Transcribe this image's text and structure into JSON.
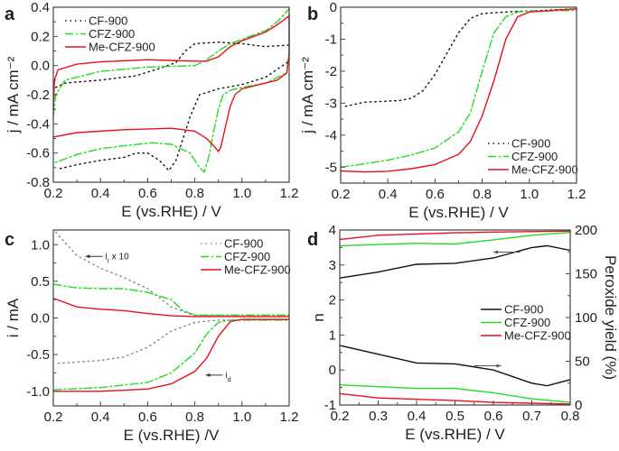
{
  "chart_data": [
    {
      "panel": "a",
      "type": "line",
      "xlabel": "E (vs.RHE) / V",
      "ylabel": "j / mA cm⁻²",
      "xlim": [
        0.2,
        1.2
      ],
      "ylim": [
        -0.8,
        0.4
      ],
      "xticks": [
        0.2,
        0.4,
        0.6,
        0.8,
        1.0,
        1.2
      ],
      "yticks": [
        0.4,
        0.2,
        0.0,
        -0.2,
        -0.4,
        -0.6,
        -0.8
      ],
      "xtick_labels": [
        "0.2",
        "0.4",
        "0.6",
        "0.8",
        "1.0",
        "1.2"
      ],
      "ytick_labels": [
        "0.4",
        "0.2",
        "0.0",
        "-0.2",
        "-0.4",
        "-0.6",
        "-0.8"
      ],
      "legend": "top-left",
      "series": [
        {
          "name": "CF-900",
          "color": "#111111",
          "style": "dotted",
          "x": [
            0.21,
            0.25,
            0.4,
            0.55,
            0.65,
            0.72,
            0.76,
            0.8,
            0.9,
            1.0,
            1.1,
            1.2,
            1.2,
            1.1,
            1.0,
            0.9,
            0.82,
            0.78,
            0.75,
            0.72,
            0.69,
            0.65,
            0.6,
            0.55,
            0.5,
            0.4,
            0.3,
            0.22
          ],
          "y": [
            -0.15,
            -0.12,
            -0.1,
            -0.07,
            -0.02,
            0.02,
            0.1,
            0.15,
            0.16,
            0.15,
            0.13,
            0.14,
            0.03,
            -0.08,
            -0.13,
            -0.16,
            -0.2,
            -0.35,
            -0.5,
            -0.65,
            -0.72,
            -0.65,
            -0.6,
            -0.6,
            -0.63,
            -0.65,
            -0.68,
            -0.71
          ]
        },
        {
          "name": "CFZ-900",
          "color": "#22dd22",
          "style": "dashdot",
          "x": [
            0.2,
            0.21,
            0.25,
            0.4,
            0.6,
            0.8,
            0.85,
            0.9,
            0.95,
            1.0,
            1.1,
            1.15,
            1.2,
            1.2,
            1.19,
            1.1,
            1.0,
            0.95,
            0.92,
            0.9,
            0.88,
            0.86,
            0.84,
            0.82,
            0.78,
            0.7,
            0.62,
            0.5,
            0.4,
            0.3,
            0.2
          ],
          "y": [
            -0.35,
            -0.2,
            -0.1,
            -0.04,
            -0.01,
            0.0,
            0.04,
            0.1,
            0.15,
            0.18,
            0.24,
            0.3,
            0.39,
            0.1,
            -0.05,
            -0.12,
            -0.15,
            -0.17,
            -0.2,
            -0.3,
            -0.45,
            -0.62,
            -0.73,
            -0.7,
            -0.6,
            -0.54,
            -0.53,
            -0.55,
            -0.57,
            -0.61,
            -0.67
          ]
        },
        {
          "name": "Me-CFZ-900",
          "color": "#e8101b",
          "style": "solid",
          "x": [
            0.2,
            0.205,
            0.22,
            0.3,
            0.4,
            0.6,
            0.7,
            0.8,
            0.85,
            0.9,
            0.95,
            1.0,
            1.1,
            1.15,
            1.2,
            1.2,
            1.19,
            1.15,
            1.1,
            1.0,
            0.97,
            0.95,
            0.93,
            0.91,
            0.9,
            0.88,
            0.85,
            0.8,
            0.7,
            0.5,
            0.3,
            0.2
          ],
          "y": [
            -0.3,
            -0.1,
            -0.03,
            0.01,
            0.025,
            0.04,
            0.035,
            0.03,
            0.03,
            0.06,
            0.13,
            0.17,
            0.23,
            0.28,
            0.34,
            0.08,
            -0.05,
            -0.1,
            -0.12,
            -0.16,
            -0.2,
            -0.28,
            -0.42,
            -0.56,
            -0.59,
            -0.55,
            -0.5,
            -0.45,
            -0.43,
            -0.44,
            -0.46,
            -0.49
          ]
        }
      ]
    },
    {
      "panel": "b",
      "type": "line",
      "xlabel": "E (vs.RHE) / V",
      "ylabel": "j / mA cm⁻²",
      "xlim": [
        0.2,
        1.2
      ],
      "ylim": [
        -5.5,
        0
      ],
      "xticks": [
        0.2,
        0.4,
        0.6,
        0.8,
        1.0,
        1.2
      ],
      "yticks": [
        0,
        -1,
        -2,
        -3,
        -4,
        -5
      ],
      "xtick_labels": [
        "0.2",
        "0.4",
        "0.6",
        "0.8",
        "1.0",
        "1.2"
      ],
      "ytick_labels": [
        "0",
        "-1",
        "-2",
        "-3",
        "-4",
        "-5"
      ],
      "legend": "bottom-right",
      "series": [
        {
          "name": "CF-900",
          "color": "#111111",
          "style": "dotted",
          "x": [
            0.22,
            0.3,
            0.45,
            0.5,
            0.55,
            0.6,
            0.65,
            0.7,
            0.75,
            0.8,
            0.9,
            1.2
          ],
          "y": [
            -3.1,
            -2.97,
            -2.92,
            -2.85,
            -2.6,
            -2.1,
            -1.45,
            -0.8,
            -0.35,
            -0.2,
            -0.15,
            -0.05
          ]
        },
        {
          "name": "CFZ-900",
          "color": "#22dd22",
          "style": "dashdot",
          "x": [
            0.2,
            0.3,
            0.4,
            0.5,
            0.6,
            0.7,
            0.75,
            0.8,
            0.85,
            0.9,
            0.95,
            1.0,
            1.2
          ],
          "y": [
            -5.0,
            -4.9,
            -4.78,
            -4.62,
            -4.4,
            -3.9,
            -3.3,
            -2.0,
            -0.8,
            -0.3,
            -0.15,
            -0.12,
            -0.1
          ]
        },
        {
          "name": "Me-CFZ-900",
          "color": "#e8101b",
          "style": "solid",
          "x": [
            0.2,
            0.3,
            0.4,
            0.5,
            0.6,
            0.7,
            0.75,
            0.8,
            0.85,
            0.9,
            0.95,
            1.0,
            1.2
          ],
          "y": [
            -5.12,
            -5.15,
            -5.13,
            -5.05,
            -4.92,
            -4.6,
            -4.2,
            -3.4,
            -2.3,
            -1.0,
            -0.3,
            -0.15,
            -0.05
          ]
        }
      ]
    },
    {
      "panel": "c",
      "type": "line",
      "xlabel": "E (vs.RHE) /V",
      "ylabel": "i / mA",
      "xlim": [
        0.2,
        1.2
      ],
      "ylim": [
        -1.2,
        1.2
      ],
      "xticks": [
        0.2,
        0.4,
        0.6,
        0.8,
        1.0,
        1.2
      ],
      "yticks": [
        1.0,
        0.5,
        0.0,
        -0.5,
        -1.0
      ],
      "xtick_labels": [
        "0.2",
        "0.4",
        "0.6",
        "0.8",
        "1.0",
        "1.2"
      ],
      "ytick_labels": [
        "1.0",
        "0.5",
        "0.0",
        "-0.5",
        "-1.0"
      ],
      "legend": "top-right",
      "annotations": [
        {
          "text": "i",
          "sub": "r",
          "suffix": " x 10",
          "x": 0.42,
          "y": 0.84,
          "arrow": "left"
        },
        {
          "text": "i",
          "sub": "d",
          "suffix": "",
          "x": 0.93,
          "y": -0.78,
          "arrow": "left"
        }
      ],
      "series": [
        {
          "name": "CF-900",
          "color": "#888888",
          "style": "dotted",
          "x": [
            0.21,
            0.3,
            0.4,
            0.5,
            0.6,
            0.7,
            0.8,
            1.2
          ],
          "y": [
            1.17,
            0.85,
            0.68,
            0.55,
            0.4,
            0.15,
            0.03,
            0.02
          ],
          "x2": [
            0.22,
            0.4,
            0.5,
            0.6,
            0.7,
            0.8,
            0.9,
            1.2
          ],
          "y2": [
            -0.62,
            -0.58,
            -0.53,
            -0.4,
            -0.18,
            -0.06,
            -0.03,
            -0.02
          ]
        },
        {
          "name": "CFZ-900",
          "color": "#22dd22",
          "style": "dashdot",
          "x": [
            0.2,
            0.3,
            0.4,
            0.5,
            0.6,
            0.7,
            0.75,
            0.8,
            1.2
          ],
          "y": [
            0.46,
            0.41,
            0.4,
            0.4,
            0.35,
            0.25,
            0.1,
            0.04,
            0.04
          ],
          "x2": [
            0.2,
            0.4,
            0.6,
            0.7,
            0.8,
            0.85,
            0.9,
            0.95,
            1.2
          ],
          "y2": [
            -0.98,
            -0.95,
            -0.88,
            -0.75,
            -0.48,
            -0.22,
            -0.06,
            -0.03,
            -0.03
          ]
        },
        {
          "name": "Me-CFZ-900",
          "color": "#e8101b",
          "style": "solid",
          "x": [
            0.2,
            0.3,
            0.4,
            0.5,
            0.6,
            0.7,
            0.8,
            1.2
          ],
          "y": [
            0.27,
            0.15,
            0.12,
            0.1,
            0.06,
            0.03,
            0.02,
            0.02
          ],
          "x2": [
            0.2,
            0.4,
            0.6,
            0.7,
            0.8,
            0.85,
            0.9,
            0.95,
            1.0,
            1.2
          ],
          "y2": [
            -1.0,
            -1.0,
            -0.97,
            -0.9,
            -0.73,
            -0.55,
            -0.25,
            -0.05,
            -0.02,
            -0.02
          ]
        }
      ]
    },
    {
      "panel": "d",
      "type": "line",
      "xlabel": "E (vs.RHE) / V",
      "ylabel": "n",
      "y2label": "Peroxide yield (%)",
      "xlim": [
        0.2,
        0.8
      ],
      "ylim": [
        -1,
        4
      ],
      "y2lim": [
        0,
        200
      ],
      "xticks": [
        0.2,
        0.3,
        0.4,
        0.5,
        0.6,
        0.7,
        0.8
      ],
      "yticks": [
        4,
        3,
        2,
        1,
        0,
        -1
      ],
      "y2ticks": [
        200,
        150,
        100,
        50,
        0
      ],
      "xtick_labels": [
        "0.2",
        "0.3",
        "0.4",
        "0.5",
        "0.6",
        "0.7",
        "0.8"
      ],
      "ytick_labels": [
        "4",
        "3",
        "2",
        "1",
        "0",
        "-1"
      ],
      "y2tick_labels": [
        "200",
        "150",
        "100",
        "50",
        "0"
      ],
      "legend": "center-right",
      "series": [
        {
          "name": "CF-900",
          "color": "#111111",
          "style": "solid",
          "x": [
            0.2,
            0.3,
            0.4,
            0.5,
            0.6,
            0.7,
            0.74,
            0.8
          ],
          "n": [
            2.63,
            2.8,
            3.02,
            3.05,
            3.2,
            3.5,
            3.55,
            3.42
          ],
          "peroxide": [
            68,
            58,
            48,
            47,
            40,
            25,
            22,
            29
          ]
        },
        {
          "name": "CFZ-900",
          "color": "#22dd22",
          "style": "solid",
          "x": [
            0.2,
            0.4,
            0.5,
            0.6,
            0.7,
            0.8
          ],
          "n": [
            3.55,
            3.62,
            3.6,
            3.72,
            3.85,
            3.93
          ],
          "peroxide": [
            23,
            19,
            19,
            14,
            7,
            3
          ]
        },
        {
          "name": "Me-CFZ-900",
          "color": "#e8101b",
          "style": "solid",
          "x": [
            0.2,
            0.3,
            0.5,
            0.6,
            0.8
          ],
          "n": [
            3.73,
            3.85,
            3.92,
            3.94,
            3.97
          ],
          "peroxide": [
            13,
            8,
            5,
            3,
            1
          ]
        }
      ]
    }
  ]
}
